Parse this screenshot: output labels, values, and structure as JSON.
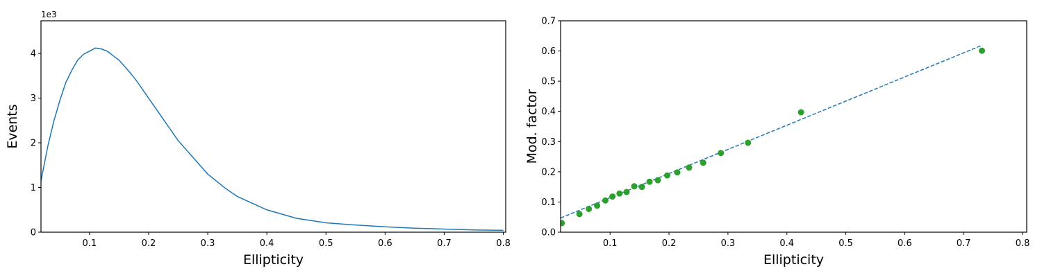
{
  "chart_data": [
    {
      "type": "line",
      "xlabel": "Ellipticity",
      "ylabel": "Events",
      "offset_label": "1e3",
      "xlim": [
        0.018,
        0.804
      ],
      "ylim": [
        0,
        4.73
      ],
      "xticks": [
        0.1,
        0.2,
        0.3,
        0.4,
        0.5,
        0.6,
        0.7,
        0.8
      ],
      "yticks": [
        0,
        1,
        2,
        3,
        4
      ],
      "series": [
        {
          "color": "#1f77b4",
          "x": [
            0.018,
            0.03,
            0.04,
            0.05,
            0.06,
            0.07,
            0.08,
            0.09,
            0.1,
            0.11,
            0.12,
            0.13,
            0.14,
            0.15,
            0.16,
            0.17,
            0.18,
            0.2,
            0.22,
            0.25,
            0.28,
            0.3,
            0.33,
            0.35,
            0.38,
            0.4,
            0.45,
            0.5,
            0.55,
            0.6,
            0.65,
            0.7,
            0.75,
            0.8
          ],
          "values": [
            1.15,
            1.95,
            2.5,
            2.95,
            3.35,
            3.62,
            3.85,
            3.98,
            4.05,
            4.12,
            4.1,
            4.05,
            3.95,
            3.85,
            3.7,
            3.55,
            3.38,
            3.0,
            2.62,
            2.05,
            1.6,
            1.3,
            0.98,
            0.8,
            0.62,
            0.5,
            0.31,
            0.21,
            0.16,
            0.12,
            0.09,
            0.07,
            0.05,
            0.04
          ]
        }
      ]
    },
    {
      "type": "scatter",
      "xlabel": "Ellipticity",
      "ylabel": "Mod. factor",
      "xlim": [
        0.016,
        0.807
      ],
      "ylim": [
        0,
        0.7
      ],
      "xticks": [
        0.1,
        0.2,
        0.3,
        0.4,
        0.5,
        0.6,
        0.7,
        0.8
      ],
      "yticks": [
        {
          "value": 0,
          "label": "0.0"
        },
        0.1,
        0.2,
        0.3,
        0.4,
        0.5,
        0.6,
        0.7
      ],
      "series": [
        {
          "color": "#2ca02c",
          "x": [
            0.018,
            0.048,
            0.064,
            0.078,
            0.092,
            0.104,
            0.116,
            0.128,
            0.141,
            0.154,
            0.167,
            0.181,
            0.197,
            0.214,
            0.234,
            0.258,
            0.288,
            0.334,
            0.424,
            0.731
          ],
          "values": [
            0.03,
            0.06,
            0.077,
            0.088,
            0.105,
            0.118,
            0.128,
            0.133,
            0.152,
            0.15,
            0.167,
            0.172,
            0.188,
            0.198,
            0.214,
            0.23,
            0.262,
            0.296,
            0.397,
            0.601
          ]
        }
      ],
      "fit": {
        "color": "#1f77b4",
        "linestyle": "dashed",
        "x": [
          0.016,
          0.73
        ],
        "values": [
          0.047,
          0.618
        ]
      }
    }
  ]
}
